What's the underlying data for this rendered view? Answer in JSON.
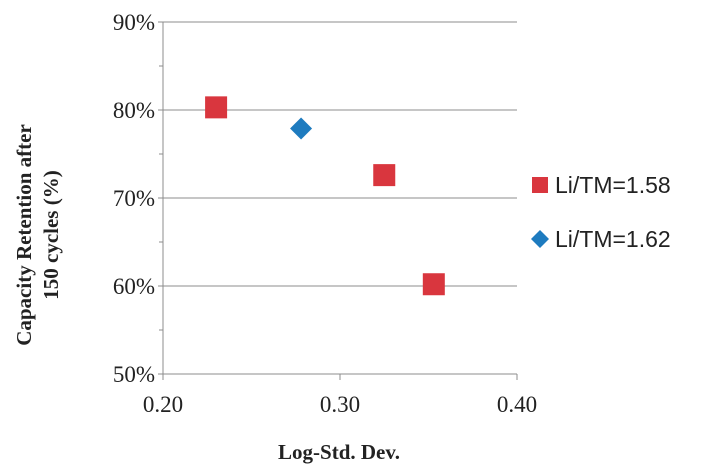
{
  "chart_data": {
    "type": "scatter",
    "title": "",
    "xlabel": "Log-Std. Dev.",
    "ylabel_lines": [
      "Capacity Retention after",
      "150 cycles (%)"
    ],
    "xlim": [
      0.2,
      0.4
    ],
    "ylim": [
      50,
      90
    ],
    "x_ticks": [
      0.2,
      0.3,
      0.4
    ],
    "x_tick_labels": [
      "0.20",
      "0.30",
      "0.40"
    ],
    "y_ticks": [
      50,
      60,
      70,
      80,
      90
    ],
    "y_tick_labels": [
      "50%",
      "60%",
      "70%",
      "80%",
      "90%"
    ],
    "grid": "horizontal",
    "legend_position": "right",
    "series": [
      {
        "name": "Li/TM=1.58",
        "marker": "square",
        "color": "#d9363e",
        "points": [
          {
            "x": 0.23,
            "y": 80.3
          },
          {
            "x": 0.325,
            "y": 72.6
          },
          {
            "x": 0.353,
            "y": 60.2
          }
        ]
      },
      {
        "name": "Li/TM=1.62",
        "marker": "diamond",
        "color": "#1e7bbf",
        "points": [
          {
            "x": 0.278,
            "y": 77.9
          }
        ]
      }
    ]
  }
}
